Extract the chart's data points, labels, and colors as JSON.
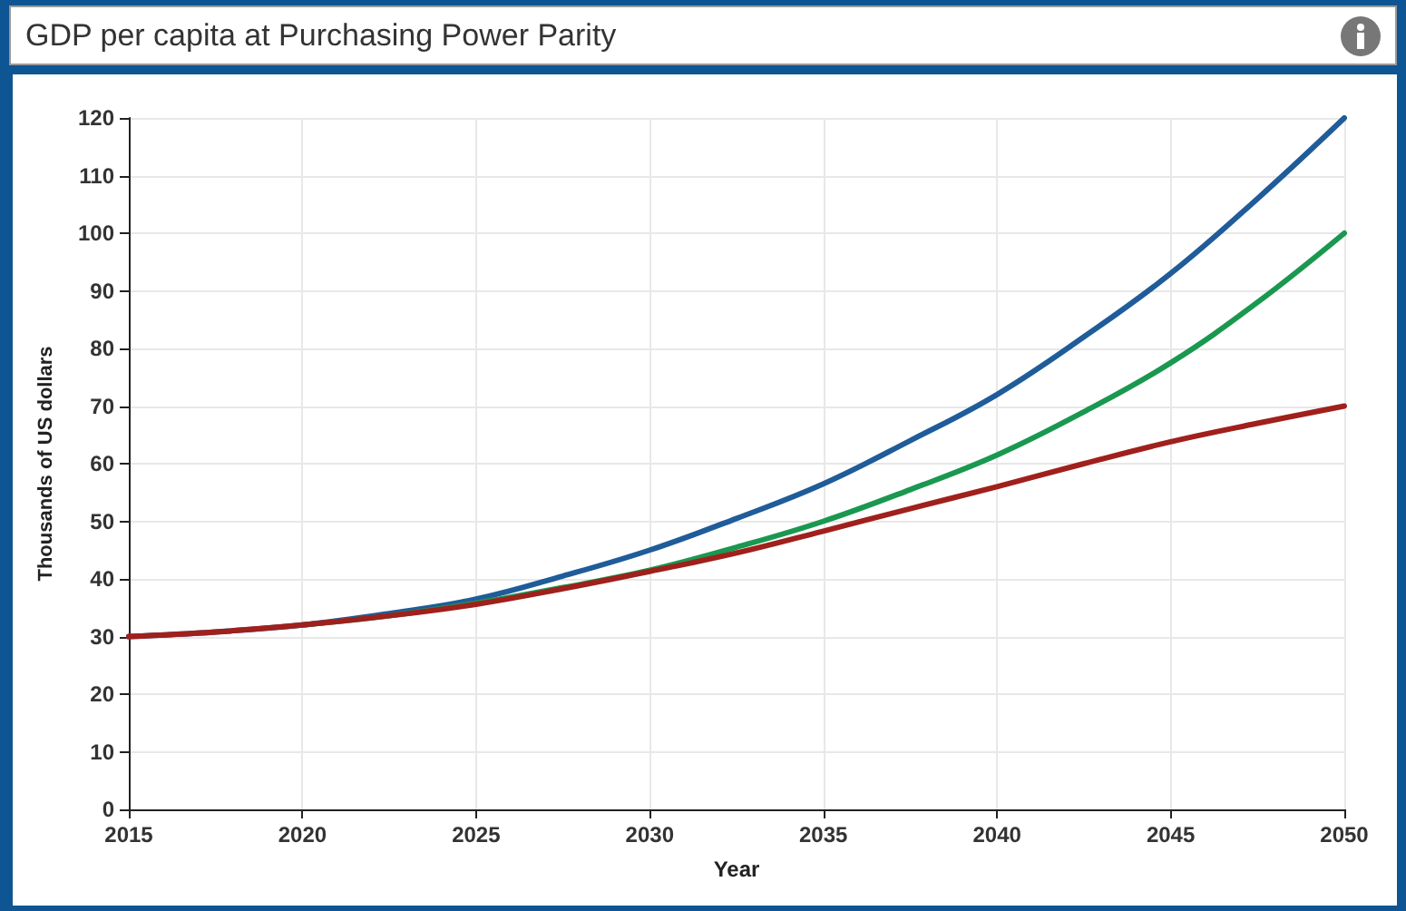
{
  "chart_data": {
    "type": "line",
    "title": "GDP per capita at Purchasing Power Parity",
    "xlabel": "Year",
    "ylabel": "Thousands of US dollars",
    "x": [
      2015,
      2017.5,
      2020,
      2022.5,
      2025,
      2027.5,
      2030,
      2032.5,
      2035,
      2037.5,
      2040,
      2042.5,
      2045,
      2047.5,
      2050
    ],
    "series": [
      {
        "color": "#1f5c99",
        "values": [
          30,
          30.8,
          32,
          34,
          36.5,
          40.5,
          45,
          50.5,
          56.5,
          64,
          72,
          82,
          93,
          106,
          120
        ]
      },
      {
        "color": "#1a9850",
        "values": [
          null,
          null,
          32,
          33.6,
          35.8,
          38.5,
          41.5,
          45.5,
          50,
          55.5,
          61.5,
          69,
          77.5,
          88,
          100
        ]
      },
      {
        "color": "#a0201c",
        "values": [
          30,
          30.8,
          32,
          33.6,
          35.6,
          38.3,
          41.3,
          44.5,
          48.3,
          52.2,
          56,
          60,
          63.8,
          67,
          70
        ]
      }
    ],
    "xlim": [
      2015,
      2050
    ],
    "xticks": [
      2015,
      2020,
      2025,
      2030,
      2035,
      2040,
      2045,
      2050
    ],
    "ylim": [
      0,
      120
    ],
    "yticks": [
      0,
      10,
      20,
      30,
      40,
      50,
      60,
      70,
      80,
      90,
      100,
      110,
      120
    ],
    "grid": true,
    "marker": "none",
    "line_style": "solid"
  }
}
